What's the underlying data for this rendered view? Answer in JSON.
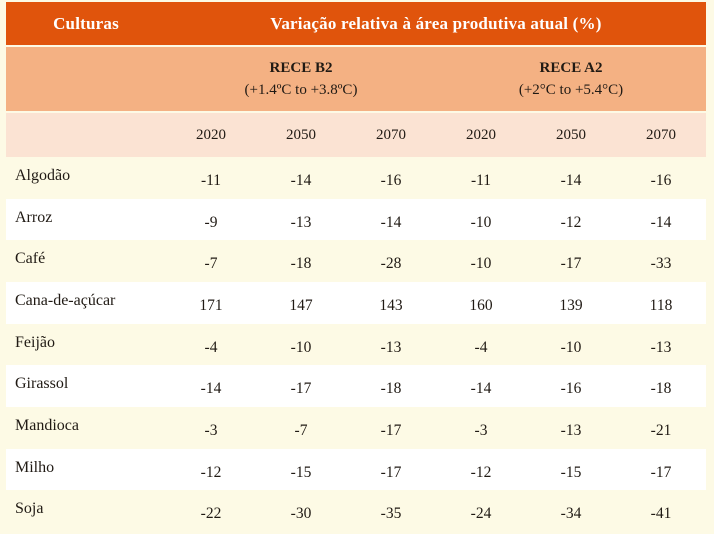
{
  "chart_data": {
    "type": "table",
    "col1_header": "Culturas",
    "main_header": "Variação relativa à área produtiva atual (%)",
    "groups": [
      {
        "label": "RECE B2",
        "range": "(+1.4ºC to +3.8ºC)"
      },
      {
        "label": "RECE A2",
        "range": "(+2°C to +5.4°C)"
      }
    ],
    "year_columns": [
      "2020",
      "2050",
      "2070",
      "2020",
      "2050",
      "2070"
    ],
    "rows": [
      {
        "crop": "Algodão",
        "values": [
          -11,
          -14,
          -16,
          -11,
          -14,
          -16
        ]
      },
      {
        "crop": "Arroz",
        "values": [
          -9,
          -13,
          -14,
          -10,
          -12,
          -14
        ]
      },
      {
        "crop": "Café",
        "values": [
          -7,
          -18,
          -28,
          -10,
          -17,
          -33
        ]
      },
      {
        "crop": "Cana-de-açúcar",
        "values": [
          171,
          147,
          143,
          160,
          139,
          118
        ]
      },
      {
        "crop": "Feijão",
        "values": [
          -4,
          -10,
          -13,
          -4,
          -10,
          -13
        ]
      },
      {
        "crop": "Girassol",
        "values": [
          -14,
          -17,
          -18,
          -14,
          -16,
          -18
        ]
      },
      {
        "crop": "Mandioca",
        "values": [
          -3,
          -7,
          -17,
          -3,
          -13,
          -21
        ]
      },
      {
        "crop": "Milho",
        "values": [
          -12,
          -15,
          -17,
          -12,
          -15,
          -17
        ]
      },
      {
        "crop": "Soja",
        "values": [
          -22,
          -30,
          -35,
          -24,
          -34,
          -41
        ]
      }
    ]
  },
  "colors": {
    "header_bg": "#E0540C",
    "group_bg": "#F4B183",
    "year_bg": "#FBE3D3",
    "odd_row_bg": "#FDFAE5",
    "even_row_bg": "#FFFFFF",
    "header_text": "#FFFFFF",
    "body_text": "#201A14"
  }
}
